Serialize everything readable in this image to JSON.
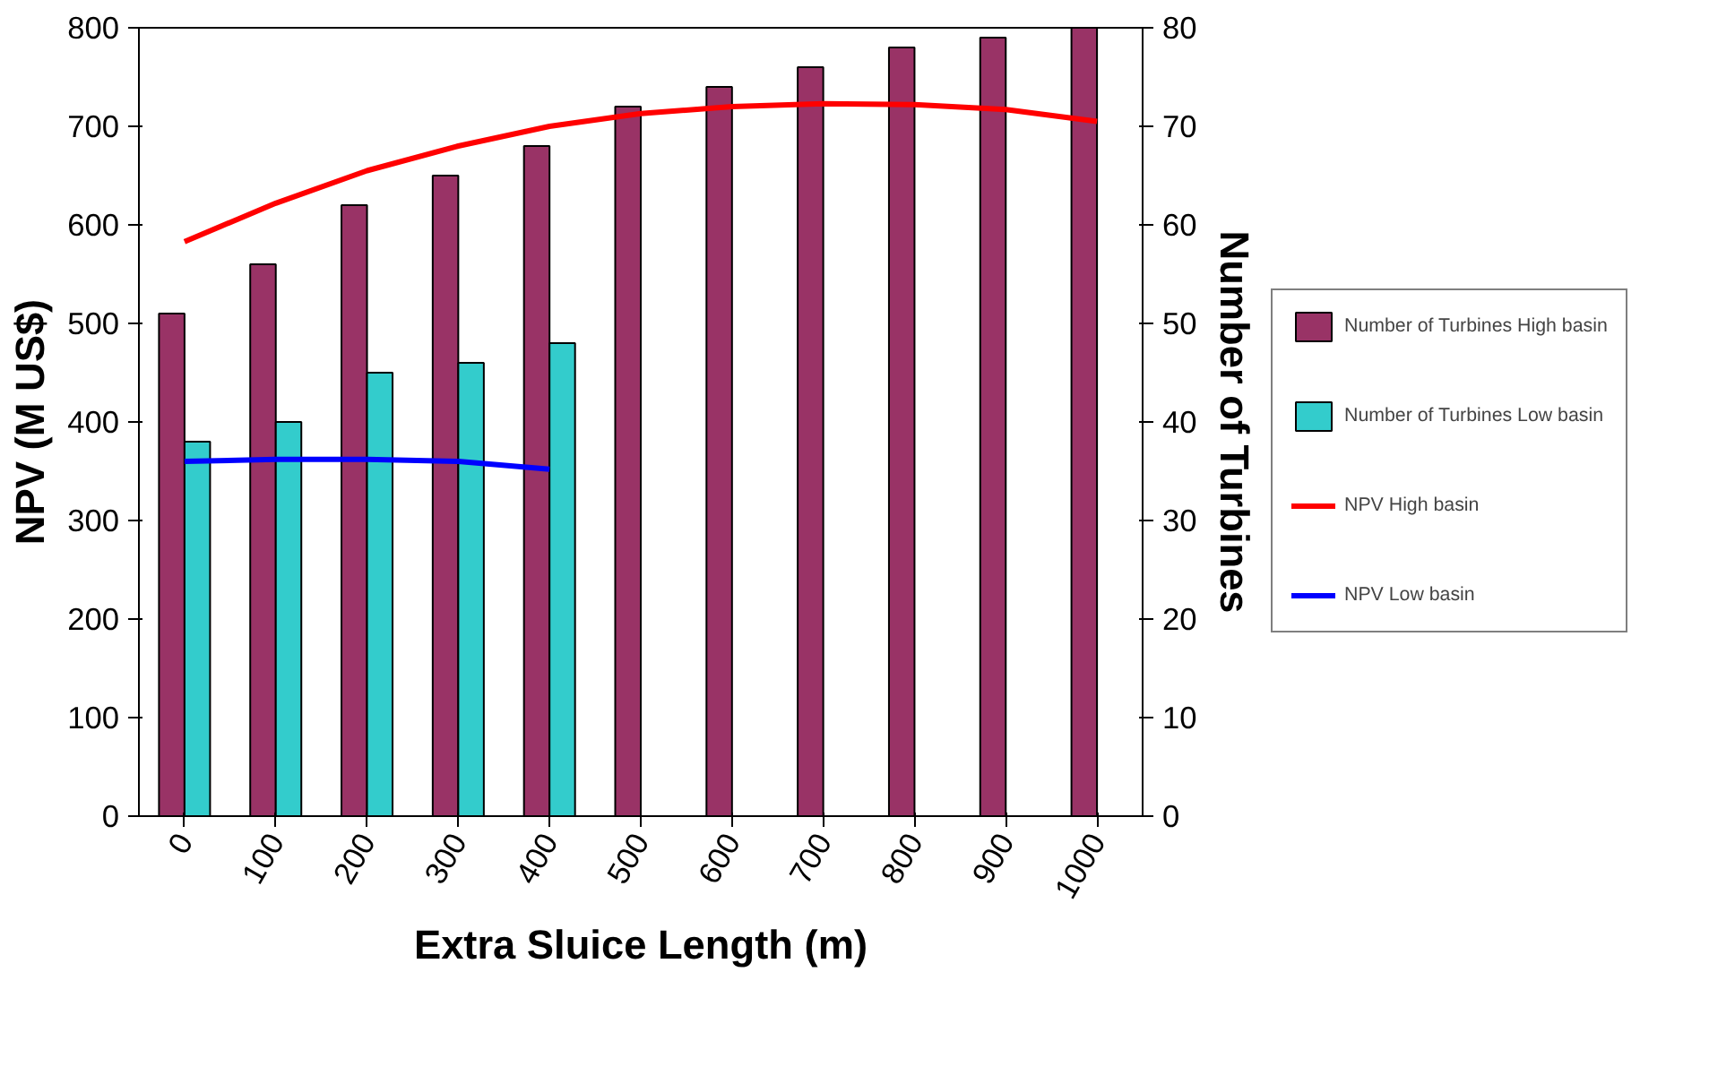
{
  "chart_data": {
    "type": "bar",
    "categories": [
      "0",
      "100",
      "200",
      "300",
      "400",
      "500",
      "600",
      "700",
      "800",
      "900",
      "1000"
    ],
    "xlabel": "Extra Sluice Length (m)",
    "ylabel": "NPV (M US$)",
    "y2label": "Number of Turbines",
    "ylim": [
      0,
      800
    ],
    "yticks": [
      0,
      100,
      200,
      300,
      400,
      500,
      600,
      700,
      800
    ],
    "y2lim": [
      0,
      80
    ],
    "y2ticks": [
      0,
      10,
      20,
      30,
      40,
      50,
      60,
      70,
      80
    ],
    "legend": "right",
    "series": [
      {
        "name": "Number of Turbines High basin",
        "axis": "y2",
        "color": "#993366",
        "values": [
          51,
          56,
          62,
          65,
          68,
          72,
          74,
          76,
          78,
          79,
          80
        ]
      },
      {
        "name": "Number of Turbines Low basin",
        "axis": "y2",
        "color": "#33cccc",
        "values": [
          38,
          40,
          45,
          46,
          48,
          null,
          null,
          null,
          null,
          null,
          null
        ]
      },
      {
        "name": "NPV High basin",
        "type": "line",
        "color": "#ff0000",
        "values": [
          583,
          622,
          655,
          680,
          700,
          713,
          720,
          723,
          722,
          717,
          705
        ]
      },
      {
        "name": "NPV Low basin",
        "type": "line",
        "color": "#0000ff",
        "values": [
          360,
          362,
          362,
          360,
          352,
          null,
          null,
          null,
          null,
          null,
          null
        ]
      }
    ]
  }
}
